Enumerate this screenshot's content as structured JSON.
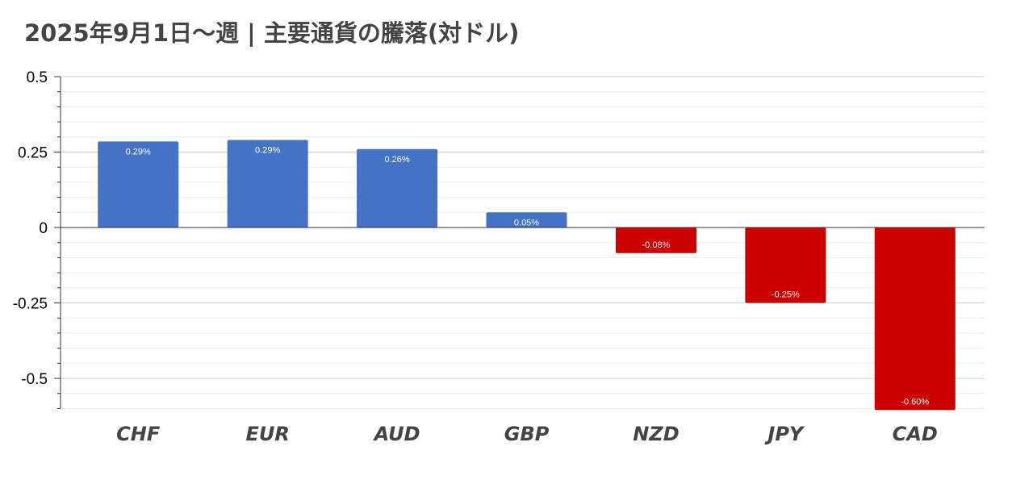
{
  "chart_data": {
    "type": "bar",
    "title": "2025年9月1日～週 | 主要通貨の騰落(対ドル)",
    "categories": [
      "CHF",
      "EUR",
      "AUD",
      "GBP",
      "NZD",
      "JPY",
      "CAD"
    ],
    "values": [
      0.285,
      0.29,
      0.26,
      0.05,
      -0.085,
      -0.25,
      -0.605
    ],
    "data_labels": [
      "0.29%",
      "0.29%",
      "0.26%",
      "0.05%",
      "-0.08%",
      "-0.25%",
      "-0.60%"
    ],
    "ylim": [
      -0.6,
      0.5
    ],
    "yticks": [
      0.5,
      0.25,
      0,
      -0.25,
      -0.5
    ],
    "ytick_labels": [
      "0.5",
      "0.25",
      "0",
      "-0.25",
      "-0.5"
    ],
    "xlabel": "",
    "ylabel": "",
    "grid": true,
    "legend": "none",
    "colors": {
      "positive": "#4472c4",
      "negative": "#cc0000",
      "title": "#444444",
      "gridline": "#d9d9d9",
      "axis": "#333333"
    }
  }
}
